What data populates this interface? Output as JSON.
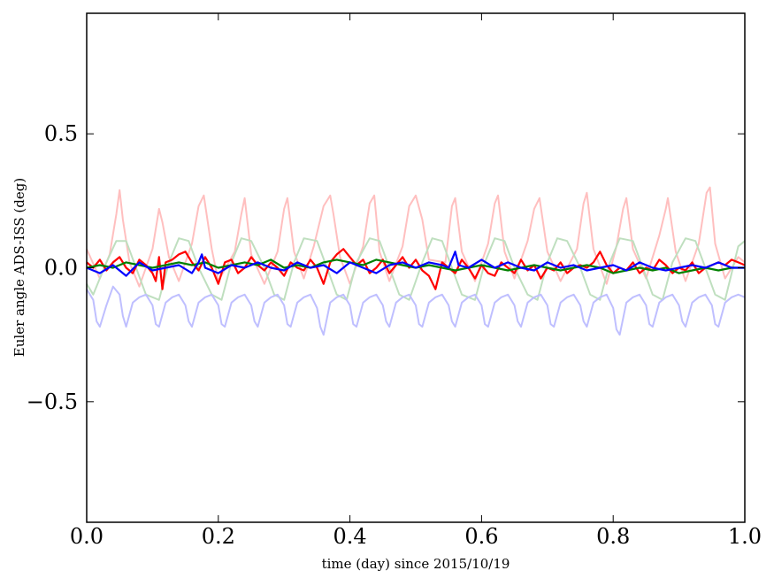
{
  "chart_data": {
    "type": "line",
    "title": "",
    "xlabel": "time (day) since 2015/10/19",
    "ylabel": "Euler angle ADS-ISS (deg)",
    "xlim": [
      0.0,
      1.0
    ],
    "ylim": [
      -0.95,
      0.95
    ],
    "grid": false,
    "legend": "none",
    "x_ticks": [
      {
        "value": 0.0,
        "label": "0.0"
      },
      {
        "value": 0.2,
        "label": "0.2"
      },
      {
        "value": 0.4,
        "label": "0.4"
      },
      {
        "value": 0.6,
        "label": "0.6"
      },
      {
        "value": 0.8,
        "label": "0.8"
      },
      {
        "value": 1.0,
        "label": "1.0"
      }
    ],
    "y_ticks": [
      {
        "value": -0.5,
        "label": "−0.5"
      },
      {
        "value": 0.0,
        "label": "0.0"
      },
      {
        "value": 0.5,
        "label": "0.5"
      }
    ],
    "series": [
      {
        "color": "#ffbfbf",
        "faint": true,
        "x": [
          0.0,
          0.02,
          0.035,
          0.045,
          0.05,
          0.055,
          0.065,
          0.08,
          0.1,
          0.11,
          0.115,
          0.125,
          0.14,
          0.16,
          0.17,
          0.178,
          0.19,
          0.2,
          0.225,
          0.235,
          0.24,
          0.25,
          0.27,
          0.29,
          0.3,
          0.305,
          0.315,
          0.33,
          0.345,
          0.36,
          0.37,
          0.375,
          0.385,
          0.4,
          0.42,
          0.43,
          0.437,
          0.445,
          0.46,
          0.48,
          0.49,
          0.5,
          0.51,
          0.52,
          0.545,
          0.555,
          0.56,
          0.57,
          0.59,
          0.61,
          0.62,
          0.625,
          0.635,
          0.65,
          0.67,
          0.68,
          0.688,
          0.7,
          0.72,
          0.745,
          0.755,
          0.76,
          0.77,
          0.79,
          0.805,
          0.815,
          0.82,
          0.83,
          0.85,
          0.87,
          0.88,
          0.883,
          0.895,
          0.91,
          0.93,
          0.942,
          0.947,
          0.955,
          0.97,
          0.99,
          1.0
        ],
        "y": [
          0.07,
          -0.04,
          0.05,
          0.2,
          0.29,
          0.18,
          0.02,
          -0.07,
          0.07,
          0.22,
          0.17,
          0.04,
          -0.05,
          0.09,
          0.23,
          0.27,
          0.07,
          -0.05,
          0.06,
          0.2,
          0.26,
          0.05,
          -0.06,
          0.06,
          0.22,
          0.26,
          0.06,
          -0.04,
          0.08,
          0.23,
          0.27,
          0.2,
          0.04,
          -0.06,
          0.08,
          0.24,
          0.27,
          0.06,
          -0.05,
          0.08,
          0.23,
          0.27,
          0.18,
          0.03,
          0.02,
          0.23,
          0.26,
          0.06,
          -0.05,
          0.09,
          0.24,
          0.27,
          0.06,
          -0.04,
          0.1,
          0.22,
          0.26,
          0.06,
          -0.05,
          0.07,
          0.24,
          0.28,
          0.07,
          -0.06,
          0.08,
          0.22,
          0.26,
          0.07,
          -0.04,
          0.12,
          0.22,
          0.26,
          0.06,
          -0.05,
          0.09,
          0.28,
          0.3,
          0.09,
          -0.04,
          0.04,
          0.02
        ]
      },
      {
        "color": "#bfdfbf",
        "faint": true,
        "x": [
          0.0,
          0.01,
          0.03,
          0.045,
          0.06,
          0.075,
          0.09,
          0.11,
          0.125,
          0.14,
          0.155,
          0.17,
          0.19,
          0.205,
          0.22,
          0.235,
          0.25,
          0.27,
          0.285,
          0.3,
          0.315,
          0.33,
          0.35,
          0.365,
          0.38,
          0.395,
          0.41,
          0.43,
          0.445,
          0.46,
          0.475,
          0.49,
          0.51,
          0.525,
          0.54,
          0.555,
          0.57,
          0.59,
          0.605,
          0.62,
          0.635,
          0.65,
          0.67,
          0.685,
          0.7,
          0.715,
          0.73,
          0.75,
          0.765,
          0.78,
          0.795,
          0.81,
          0.83,
          0.845,
          0.86,
          0.875,
          0.89,
          0.91,
          0.925,
          0.94,
          0.955,
          0.97,
          0.99,
          1.0
        ],
        "y": [
          -0.06,
          -0.1,
          0.02,
          0.1,
          0.1,
          0.0,
          -0.1,
          -0.12,
          0.02,
          0.11,
          0.1,
          0.0,
          -0.1,
          -0.12,
          0.02,
          0.11,
          0.1,
          0.0,
          -0.1,
          -0.12,
          0.02,
          0.11,
          0.1,
          0.0,
          -0.1,
          -0.12,
          0.02,
          0.11,
          0.1,
          0.0,
          -0.1,
          -0.12,
          0.02,
          0.11,
          0.1,
          0.0,
          -0.1,
          -0.12,
          0.02,
          0.11,
          0.1,
          0.0,
          -0.1,
          -0.12,
          0.02,
          0.11,
          0.1,
          0.0,
          -0.1,
          -0.12,
          0.02,
          0.11,
          0.1,
          0.0,
          -0.1,
          -0.12,
          0.02,
          0.11,
          0.1,
          0.0,
          -0.1,
          -0.12,
          0.08,
          0.1
        ]
      },
      {
        "color": "#bfbfff",
        "faint": true,
        "x": [
          0.0,
          0.01,
          0.015,
          0.02,
          0.03,
          0.04,
          0.05,
          0.055,
          0.06,
          0.07,
          0.08,
          0.09,
          0.1,
          0.105,
          0.11,
          0.12,
          0.13,
          0.14,
          0.15,
          0.155,
          0.16,
          0.17,
          0.18,
          0.19,
          0.2,
          0.205,
          0.21,
          0.22,
          0.23,
          0.24,
          0.25,
          0.255,
          0.26,
          0.27,
          0.28,
          0.29,
          0.3,
          0.305,
          0.31,
          0.32,
          0.33,
          0.34,
          0.35,
          0.355,
          0.36,
          0.37,
          0.38,
          0.39,
          0.4,
          0.405,
          0.41,
          0.42,
          0.43,
          0.44,
          0.45,
          0.455,
          0.46,
          0.47,
          0.48,
          0.49,
          0.5,
          0.505,
          0.51,
          0.52,
          0.53,
          0.54,
          0.55,
          0.555,
          0.56,
          0.57,
          0.58,
          0.59,
          0.6,
          0.605,
          0.61,
          0.62,
          0.63,
          0.64,
          0.65,
          0.655,
          0.66,
          0.67,
          0.68,
          0.69,
          0.7,
          0.705,
          0.71,
          0.72,
          0.73,
          0.74,
          0.75,
          0.755,
          0.76,
          0.77,
          0.78,
          0.79,
          0.8,
          0.805,
          0.81,
          0.82,
          0.83,
          0.84,
          0.85,
          0.855,
          0.86,
          0.87,
          0.88,
          0.89,
          0.9,
          0.905,
          0.91,
          0.92,
          0.93,
          0.94,
          0.95,
          0.955,
          0.96,
          0.97,
          0.98,
          0.99,
          1.0
        ],
        "y": [
          -0.08,
          -0.12,
          -0.2,
          -0.22,
          -0.14,
          -0.07,
          -0.1,
          -0.18,
          -0.22,
          -0.13,
          -0.11,
          -0.1,
          -0.14,
          -0.21,
          -0.22,
          -0.13,
          -0.11,
          -0.1,
          -0.14,
          -0.2,
          -0.22,
          -0.13,
          -0.11,
          -0.1,
          -0.14,
          -0.21,
          -0.22,
          -0.13,
          -0.11,
          -0.1,
          -0.14,
          -0.2,
          -0.22,
          -0.13,
          -0.11,
          -0.1,
          -0.14,
          -0.21,
          -0.22,
          -0.13,
          -0.11,
          -0.1,
          -0.15,
          -0.22,
          -0.25,
          -0.13,
          -0.11,
          -0.1,
          -0.14,
          -0.21,
          -0.22,
          -0.13,
          -0.11,
          -0.1,
          -0.14,
          -0.2,
          -0.22,
          -0.13,
          -0.11,
          -0.1,
          -0.14,
          -0.21,
          -0.22,
          -0.13,
          -0.11,
          -0.1,
          -0.14,
          -0.2,
          -0.22,
          -0.13,
          -0.11,
          -0.1,
          -0.14,
          -0.21,
          -0.22,
          -0.13,
          -0.11,
          -0.1,
          -0.14,
          -0.2,
          -0.22,
          -0.13,
          -0.11,
          -0.1,
          -0.14,
          -0.21,
          -0.22,
          -0.13,
          -0.11,
          -0.1,
          -0.14,
          -0.2,
          -0.22,
          -0.13,
          -0.11,
          -0.1,
          -0.15,
          -0.23,
          -0.25,
          -0.13,
          -0.11,
          -0.1,
          -0.14,
          -0.21,
          -0.22,
          -0.13,
          -0.11,
          -0.1,
          -0.14,
          -0.2,
          -0.22,
          -0.13,
          -0.11,
          -0.1,
          -0.14,
          -0.21,
          -0.22,
          -0.13,
          -0.11,
          -0.1,
          -0.11
        ]
      },
      {
        "color": "#ff0000",
        "faint": false,
        "x": [
          0.0,
          0.01,
          0.02,
          0.03,
          0.04,
          0.05,
          0.06,
          0.07,
          0.08,
          0.09,
          0.1,
          0.105,
          0.11,
          0.115,
          0.12,
          0.13,
          0.14,
          0.15,
          0.16,
          0.17,
          0.18,
          0.19,
          0.2,
          0.21,
          0.22,
          0.23,
          0.24,
          0.25,
          0.26,
          0.27,
          0.28,
          0.29,
          0.3,
          0.31,
          0.32,
          0.33,
          0.34,
          0.35,
          0.36,
          0.37,
          0.38,
          0.39,
          0.4,
          0.41,
          0.42,
          0.43,
          0.44,
          0.45,
          0.46,
          0.47,
          0.48,
          0.49,
          0.5,
          0.51,
          0.52,
          0.53,
          0.54,
          0.55,
          0.56,
          0.57,
          0.58,
          0.59,
          0.6,
          0.61,
          0.62,
          0.63,
          0.64,
          0.65,
          0.66,
          0.67,
          0.68,
          0.69,
          0.7,
          0.71,
          0.72,
          0.73,
          0.74,
          0.75,
          0.76,
          0.77,
          0.78,
          0.79,
          0.8,
          0.81,
          0.82,
          0.83,
          0.84,
          0.85,
          0.86,
          0.87,
          0.88,
          0.89,
          0.9,
          0.91,
          0.92,
          0.93,
          0.94,
          0.95,
          0.96,
          0.97,
          0.98,
          0.99,
          1.0
        ],
        "y": [
          0.02,
          0.0,
          0.03,
          -0.01,
          0.02,
          0.04,
          0.0,
          -0.02,
          0.03,
          0.01,
          -0.02,
          -0.05,
          0.04,
          -0.08,
          0.02,
          0.03,
          0.05,
          0.06,
          0.02,
          -0.01,
          0.04,
          0.0,
          -0.06,
          0.02,
          0.03,
          -0.02,
          0.0,
          0.04,
          0.01,
          -0.01,
          0.02,
          0.0,
          -0.03,
          0.02,
          0.0,
          -0.01,
          0.03,
          0.0,
          -0.06,
          0.02,
          0.05,
          0.07,
          0.04,
          0.01,
          0.03,
          -0.02,
          0.0,
          0.03,
          -0.02,
          0.01,
          0.04,
          0.0,
          0.03,
          -0.01,
          -0.03,
          -0.08,
          0.02,
          0.0,
          -0.02,
          0.03,
          0.0,
          -0.04,
          0.01,
          -0.02,
          -0.03,
          0.02,
          0.0,
          -0.02,
          0.03,
          -0.01,
          0.01,
          -0.04,
          0.0,
          -0.01,
          0.02,
          -0.02,
          0.0,
          0.01,
          0.0,
          0.02,
          0.06,
          0.01,
          -0.02,
          0.0,
          -0.01,
          0.02,
          -0.02,
          0.0,
          -0.01,
          0.03,
          0.01,
          -0.02,
          0.0,
          -0.01,
          0.02,
          -0.02,
          0.0,
          0.01,
          0.02,
          0.01,
          0.03,
          0.02,
          0.01
        ]
      },
      {
        "color": "#008000",
        "faint": false,
        "x": [
          0.0,
          0.02,
          0.04,
          0.06,
          0.08,
          0.1,
          0.12,
          0.14,
          0.16,
          0.18,
          0.2,
          0.22,
          0.24,
          0.26,
          0.28,
          0.3,
          0.32,
          0.34,
          0.36,
          0.38,
          0.4,
          0.42,
          0.44,
          0.46,
          0.48,
          0.5,
          0.52,
          0.54,
          0.56,
          0.58,
          0.6,
          0.62,
          0.64,
          0.66,
          0.68,
          0.7,
          0.72,
          0.74,
          0.76,
          0.78,
          0.8,
          0.82,
          0.84,
          0.86,
          0.88,
          0.9,
          0.92,
          0.94,
          0.96,
          0.98,
          1.0
        ],
        "y": [
          0.0,
          0.01,
          0.0,
          0.02,
          0.01,
          0.0,
          0.01,
          0.02,
          0.01,
          0.02,
          0.0,
          0.01,
          0.02,
          0.01,
          0.03,
          0.0,
          0.01,
          0.0,
          0.02,
          0.03,
          0.02,
          0.01,
          0.03,
          0.02,
          0.01,
          0.0,
          0.01,
          0.0,
          -0.01,
          0.0,
          0.01,
          0.0,
          -0.01,
          0.0,
          0.01,
          0.0,
          -0.01,
          0.0,
          0.01,
          0.0,
          -0.02,
          -0.01,
          0.0,
          -0.01,
          0.0,
          -0.02,
          -0.01,
          0.0,
          -0.01,
          0.0,
          0.0
        ]
      },
      {
        "color": "#0000ff",
        "faint": false,
        "x": [
          0.0,
          0.02,
          0.04,
          0.06,
          0.08,
          0.1,
          0.12,
          0.14,
          0.16,
          0.17,
          0.175,
          0.18,
          0.2,
          0.22,
          0.24,
          0.26,
          0.28,
          0.3,
          0.32,
          0.34,
          0.36,
          0.38,
          0.4,
          0.42,
          0.44,
          0.46,
          0.48,
          0.5,
          0.52,
          0.54,
          0.55,
          0.56,
          0.565,
          0.58,
          0.6,
          0.62,
          0.64,
          0.66,
          0.68,
          0.7,
          0.72,
          0.74,
          0.76,
          0.78,
          0.8,
          0.82,
          0.84,
          0.86,
          0.88,
          0.9,
          0.92,
          0.94,
          0.96,
          0.98,
          1.0
        ],
        "y": [
          0.0,
          -0.02,
          0.01,
          -0.03,
          0.02,
          -0.01,
          0.0,
          0.01,
          -0.02,
          0.02,
          0.05,
          0.0,
          -0.02,
          0.01,
          0.0,
          0.02,
          0.0,
          -0.01,
          0.02,
          0.0,
          0.01,
          -0.02,
          0.02,
          0.0,
          -0.02,
          0.01,
          0.02,
          0.0,
          0.02,
          0.01,
          0.0,
          0.06,
          0.01,
          0.0,
          0.03,
          0.0,
          0.02,
          0.0,
          -0.01,
          0.02,
          0.0,
          0.01,
          -0.01,
          0.0,
          0.01,
          -0.01,
          0.02,
          0.0,
          -0.01,
          0.0,
          0.01,
          0.0,
          0.02,
          0.0,
          0.0
        ]
      }
    ]
  }
}
